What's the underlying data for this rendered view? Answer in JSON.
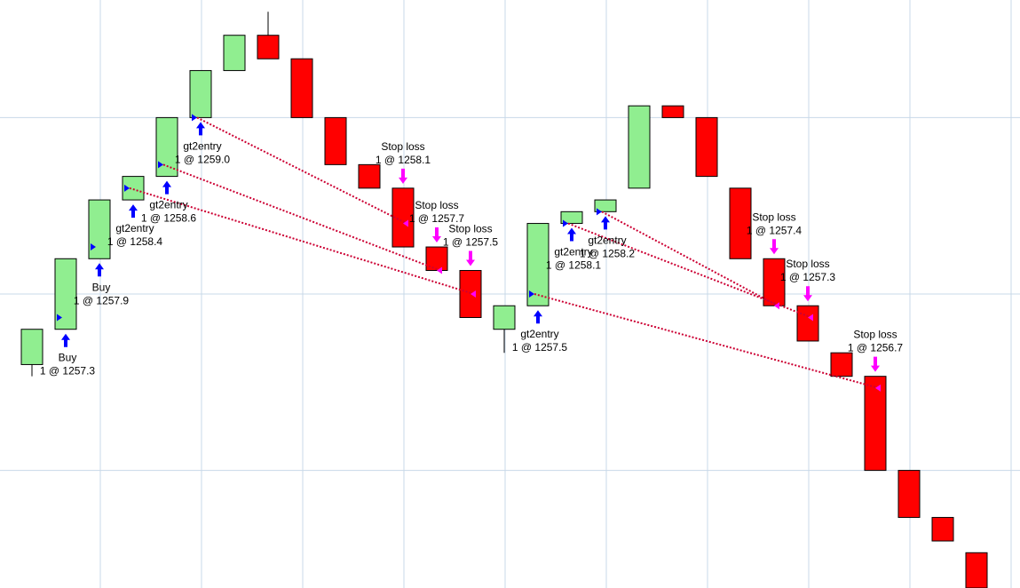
{
  "chart_data": {
    "type": "candlestick",
    "ylim": [
      1255.0,
      1260.0
    ],
    "yticks": [
      1256.0,
      1257.5,
      1259.0
    ],
    "grid": true,
    "up_color": "#90ee90",
    "down_color": "#ff0000",
    "open": [
      1256.9,
      1257.2,
      1257.8,
      1258.3,
      1258.5,
      1259.0,
      1259.4,
      1259.7,
      1259.5,
      1259.0,
      1258.6,
      1258.4,
      1257.9,
      1257.7,
      1257.2,
      1257.4,
      1258.1,
      1258.2,
      1258.4,
      1259.1,
      1259.0,
      1258.4,
      1257.8,
      1257.4,
      1257.0,
      1256.8,
      1256.0,
      1255.6,
      1255.3
    ],
    "high": [
      1257.2,
      1257.8,
      1258.3,
      1258.5,
      1259.0,
      1259.4,
      1259.7,
      1259.9,
      1259.5,
      1259.0,
      1258.6,
      1258.4,
      1257.9,
      1257.7,
      1257.4,
      1258.1,
      1258.2,
      1258.3,
      1259.1,
      1259.1,
      1259.0,
      1258.4,
      1257.8,
      1257.4,
      1257.0,
      1256.8,
      1256.0,
      1255.6,
      1255.3
    ],
    "low": [
      1256.8,
      1257.2,
      1257.8,
      1258.3,
      1258.5,
      1259.0,
      1259.4,
      1259.5,
      1259.0,
      1258.6,
      1258.4,
      1257.9,
      1257.7,
      1257.3,
      1257.0,
      1257.4,
      1258.1,
      1258.2,
      1258.4,
      1259.0,
      1258.5,
      1257.8,
      1257.4,
      1257.1,
      1256.8,
      1256.0,
      1255.6,
      1255.4,
      1255.0
    ],
    "close": [
      1257.2,
      1257.8,
      1258.3,
      1258.5,
      1259.0,
      1259.4,
      1259.7,
      1259.5,
      1259.0,
      1258.6,
      1258.4,
      1257.9,
      1257.7,
      1257.3,
      1257.4,
      1258.1,
      1258.2,
      1258.3,
      1259.1,
      1259.0,
      1258.5,
      1257.8,
      1257.4,
      1257.1,
      1256.8,
      1256.0,
      1255.6,
      1255.4,
      1255.0
    ],
    "executions": [
      {
        "name": "Buy",
        "label": "1 @ 1257.3",
        "price": 1257.3,
        "bar": 1,
        "side": "entry"
      },
      {
        "name": "Buy",
        "label": "1 @ 1257.9",
        "price": 1257.9,
        "bar": 2,
        "side": "entry"
      },
      {
        "name": "gt2entry",
        "label": "1 @ 1258.4",
        "price": 1258.4,
        "bar": 3,
        "side": "entry"
      },
      {
        "name": "gt2entry",
        "label": "1 @ 1258.6",
        "price": 1258.6,
        "bar": 4,
        "side": "entry"
      },
      {
        "name": "gt2entry",
        "label": "1 @ 1259.0",
        "price": 1259.0,
        "bar": 5,
        "side": "entry"
      },
      {
        "name": "Stop loss",
        "label": "1 @ 1258.1",
        "price": 1258.1,
        "bar": 11,
        "side": "exit"
      },
      {
        "name": "Stop loss",
        "label": "1 @ 1257.7",
        "price": 1257.7,
        "bar": 12,
        "side": "exit"
      },
      {
        "name": "Stop loss",
        "label": "1 @ 1257.5",
        "price": 1257.5,
        "bar": 13,
        "side": "exit"
      },
      {
        "name": "gt2entry",
        "label": "1 @ 1257.5",
        "price": 1257.5,
        "bar": 15,
        "side": "entry"
      },
      {
        "name": "gt2entry",
        "label": "1 @ 1258.1",
        "price": 1258.1,
        "bar": 16,
        "side": "entry"
      },
      {
        "name": "gt2entry",
        "label": "1 @ 1258.2",
        "price": 1258.2,
        "bar": 17,
        "side": "entry"
      },
      {
        "name": "Stop loss",
        "label": "1 @ 1257.4",
        "price": 1257.4,
        "bar": 22,
        "side": "exit"
      },
      {
        "name": "Stop loss",
        "label": "1 @ 1257.3",
        "price": 1257.3,
        "bar": 23,
        "side": "exit"
      },
      {
        "name": "Stop loss",
        "label": "1 @ 1256.7",
        "price": 1256.7,
        "bar": 25,
        "side": "exit"
      }
    ],
    "trades": [
      [
        4,
        5
      ],
      [
        3,
        6
      ],
      [
        2,
        7
      ],
      [
        10,
        11
      ],
      [
        9,
        12
      ],
      [
        8,
        13
      ]
    ]
  }
}
